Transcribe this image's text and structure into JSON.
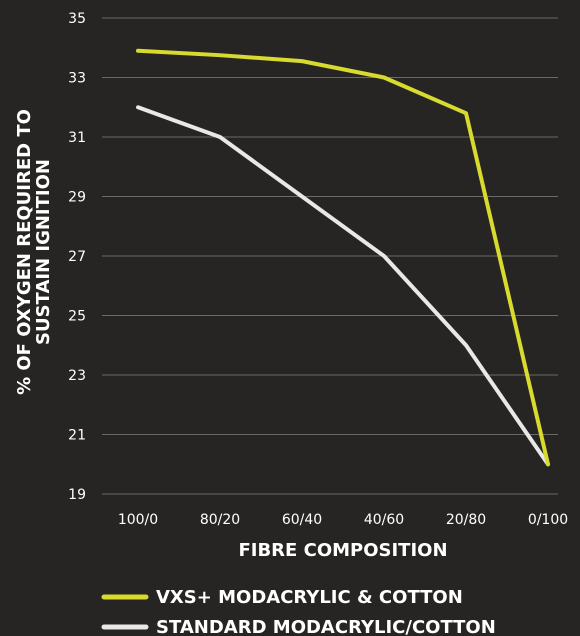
{
  "chart_data": {
    "type": "line",
    "categories": [
      "100/0",
      "80/20",
      "60/40",
      "40/60",
      "20/80",
      "0/100"
    ],
    "series": [
      {
        "name": "VXS+ MODACRYLIC & COTTON",
        "color": "#d8db2e",
        "values": [
          33.9,
          33.75,
          33.55,
          33.0,
          31.8,
          20.0
        ]
      },
      {
        "name": "STANDARD MODACRYLIC/COTTON",
        "color": "#e8e8e8",
        "values": [
          32.0,
          31.0,
          29.0,
          27.0,
          24.0,
          20.0
        ]
      }
    ],
    "xlabel": "FIBRE COMPOSITION",
    "ylabel_line1": "% OF OXYGEN REQUIRED TO",
    "ylabel_line2": "SUSTAIN IGNITION",
    "ylim": [
      19,
      35
    ],
    "yticks": [
      19,
      21,
      23,
      25,
      27,
      29,
      31,
      33,
      35
    ],
    "grid": true,
    "legend_placement": "bottom"
  }
}
